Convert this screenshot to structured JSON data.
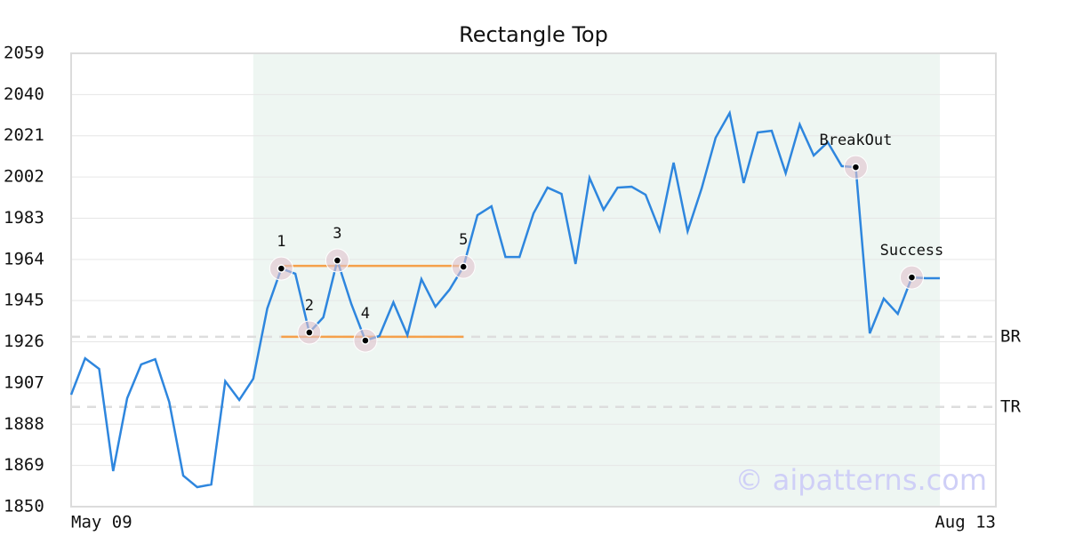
{
  "chart_data": {
    "type": "line",
    "title": "Rectangle Top",
    "categories": [
      "May 09",
      null,
      null,
      null,
      null,
      null,
      null,
      null,
      null,
      null,
      null,
      null,
      null,
      null,
      null,
      null,
      null,
      null,
      null,
      null,
      null,
      null,
      null,
      null,
      null,
      null,
      null,
      null,
      null,
      null,
      null,
      null,
      null,
      null,
      null,
      null,
      null,
      null,
      null,
      null,
      null,
      null,
      null,
      null,
      null,
      null,
      null,
      null,
      null,
      null,
      null,
      null,
      null,
      null,
      null,
      null,
      null,
      null,
      null,
      null,
      null,
      null,
      null,
      null,
      null,
      null,
      "Aug 13"
    ],
    "values": [
      1901.6,
      1918.4,
      1913.5,
      1866.4,
      1900,
      1915.6,
      1918,
      1898.3,
      1864.3,
      1859,
      1860.2,
      1907.8,
      1899.2,
      1909,
      1941.4,
      1959.8,
      1957.4,
      1930.3,
      1937.3,
      1963.5,
      1943.4,
      1926.6,
      1928.7,
      1944.2,
      1929.1,
      1954.9,
      1942.2,
      1950,
      1960.6,
      1984.4,
      1988.5,
      1965.1,
      1965.1,
      1985.2,
      1997.1,
      1994.2,
      1961.9,
      2001.6,
      1986.9,
      1997.1,
      1997.5,
      1993.8,
      1977.4,
      2008.6,
      1977,
      1996.7,
      2020.1,
      2031.5,
      1999.2,
      2022.5,
      2023.3,
      2003.7,
      2026.2,
      2011.9,
      2018,
      2007,
      2006.5,
      1929.9,
      1945.9,
      1938.9,
      1955.7,
      1955.3,
      1955.3,
      null,
      null,
      null,
      null
    ],
    "color": "#2e86de",
    "ylim": [
      1850,
      2059
    ],
    "yticks": [
      1850,
      1869,
      1888,
      1907,
      1926,
      1945,
      1964,
      1983,
      2002,
      2021,
      2040,
      2059
    ],
    "grid": true,
    "highlight_range": [
      13,
      62
    ],
    "highlight_color": "#eef6f2",
    "reference_lines": [
      {
        "name": "BR",
        "value": 1928.3
      },
      {
        "name": "TR",
        "value": 1896
      }
    ],
    "rectangle_lines": [
      {
        "value": 1961,
        "start": 15,
        "end": 28
      },
      {
        "value": 1928.3,
        "start": 15,
        "end": 28
      }
    ],
    "rectangle_color": "#f5a04a",
    "markers": [
      {
        "index": 15,
        "label": "1"
      },
      {
        "index": 17,
        "label": "2"
      },
      {
        "index": 19,
        "label": "3"
      },
      {
        "index": 21,
        "label": "4"
      },
      {
        "index": 28,
        "label": "5"
      },
      {
        "index": 56,
        "label": "BreakOut"
      },
      {
        "index": 60,
        "label": "Success"
      }
    ],
    "watermark": "© aipatterns.com"
  }
}
